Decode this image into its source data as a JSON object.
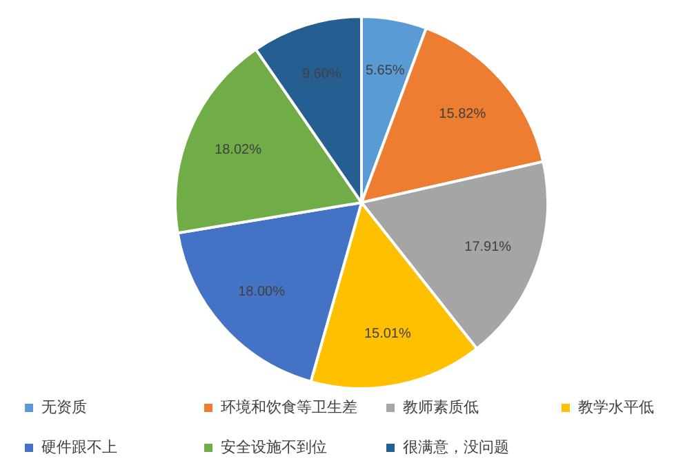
{
  "chart_data": {
    "type": "pie",
    "categories": [
      "无资质",
      "环境和饮食等卫生差",
      "教师素质低",
      "教学水平低",
      "硬件跟不上",
      "安全设施不到位",
      "很满意，没问题"
    ],
    "values": [
      5.65,
      15.82,
      17.91,
      15.01,
      18.0,
      18.02,
      9.6
    ],
    "colors": [
      "#5b9bd5",
      "#ed7d31",
      "#a5a5a5",
      "#ffc000",
      "#4472c4",
      "#70ad47",
      "#255e91"
    ],
    "value_labels": [
      "5.65%",
      "15.82%",
      "17.91%",
      "15.01%",
      "18.00%",
      "18.02%",
      "9.60%"
    ],
    "legend": "bottom"
  }
}
